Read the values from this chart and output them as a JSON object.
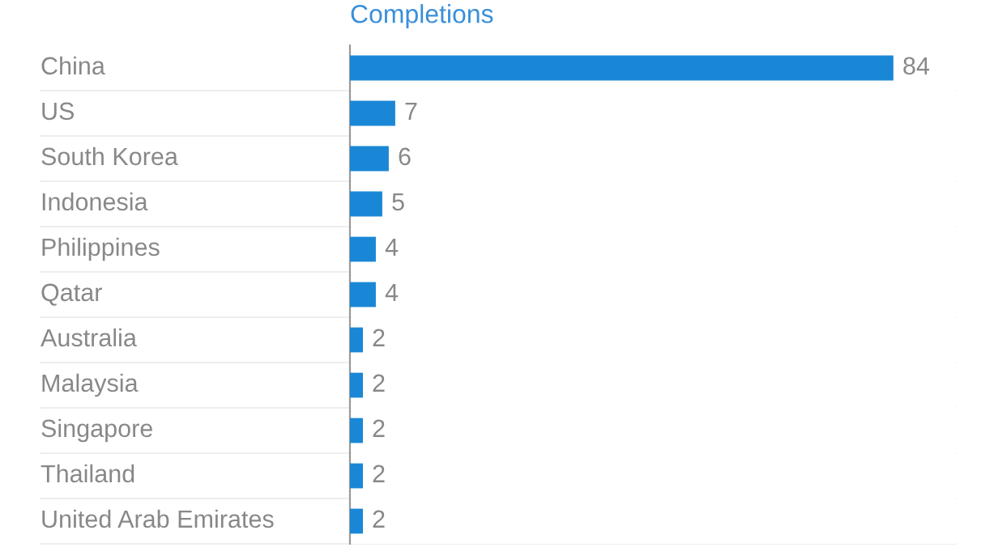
{
  "chart_data": {
    "type": "bar",
    "orientation": "horizontal",
    "title": "Completions",
    "categories": [
      "China",
      "US",
      "South Korea",
      "Indonesia",
      "Philippines",
      "Qatar",
      "Australia",
      "Malaysia",
      "Singapore",
      "Thailand",
      "United Arab Emirates"
    ],
    "values": [
      84,
      7,
      6,
      5,
      4,
      4,
      2,
      2,
      2,
      2,
      2
    ],
    "color": "#1a87d6",
    "data_labels": true,
    "grid": "y",
    "legend": false
  }
}
